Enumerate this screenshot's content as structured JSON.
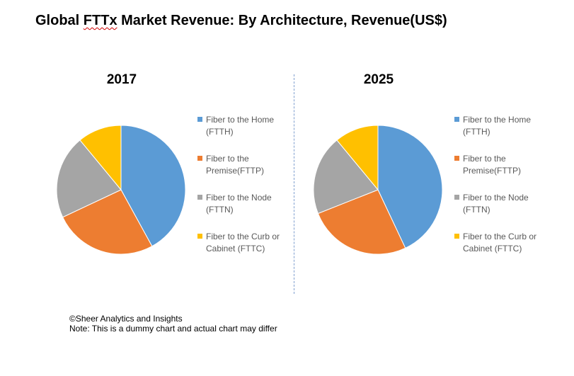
{
  "title": {
    "prefix": "Global ",
    "underlined": "FTTx",
    "suffix": " Market Revenue: By Architecture, Revenue(US$)"
  },
  "legend": [
    {
      "label": "Fiber to the Home (FTTH)",
      "color": "#5b9bd5"
    },
    {
      "label": "Fiber to the Premise(FTTP)",
      "color": "#ed7d31"
    },
    {
      "label": "Fiber to the Node (FTTN)",
      "color": "#a5a5a5"
    },
    {
      "label": "Fiber to the Curb or Cabinet (FTTC)",
      "color": "#ffc000"
    }
  ],
  "chart_data": [
    {
      "type": "pie",
      "title": "2017",
      "categories": [
        "Fiber to the Home (FTTH)",
        "Fiber to the Premise(FTTP)",
        "Fiber to the Node (FTTN)",
        "Fiber to the Curb or Cabinet (FTTC)"
      ],
      "values": [
        42,
        26,
        21,
        11
      ],
      "colors": [
        "#5b9bd5",
        "#ed7d31",
        "#a5a5a5",
        "#ffc000"
      ],
      "legend_position": "right"
    },
    {
      "type": "pie",
      "title": "2025",
      "categories": [
        "Fiber to the Home (FTTH)",
        "Fiber to the Premise(FTTP)",
        "Fiber to the Node (FTTN)",
        "Fiber to the Curb or Cabinet (FTTC)"
      ],
      "values": [
        43,
        26,
        20,
        11
      ],
      "colors": [
        "#5b9bd5",
        "#ed7d31",
        "#a5a5a5",
        "#ffc000"
      ],
      "legend_position": "right"
    }
  ],
  "footer": {
    "copyright": "©Sheer Analytics and Insights",
    "note": "Note: This is a dummy chart and actual chart may differ"
  }
}
